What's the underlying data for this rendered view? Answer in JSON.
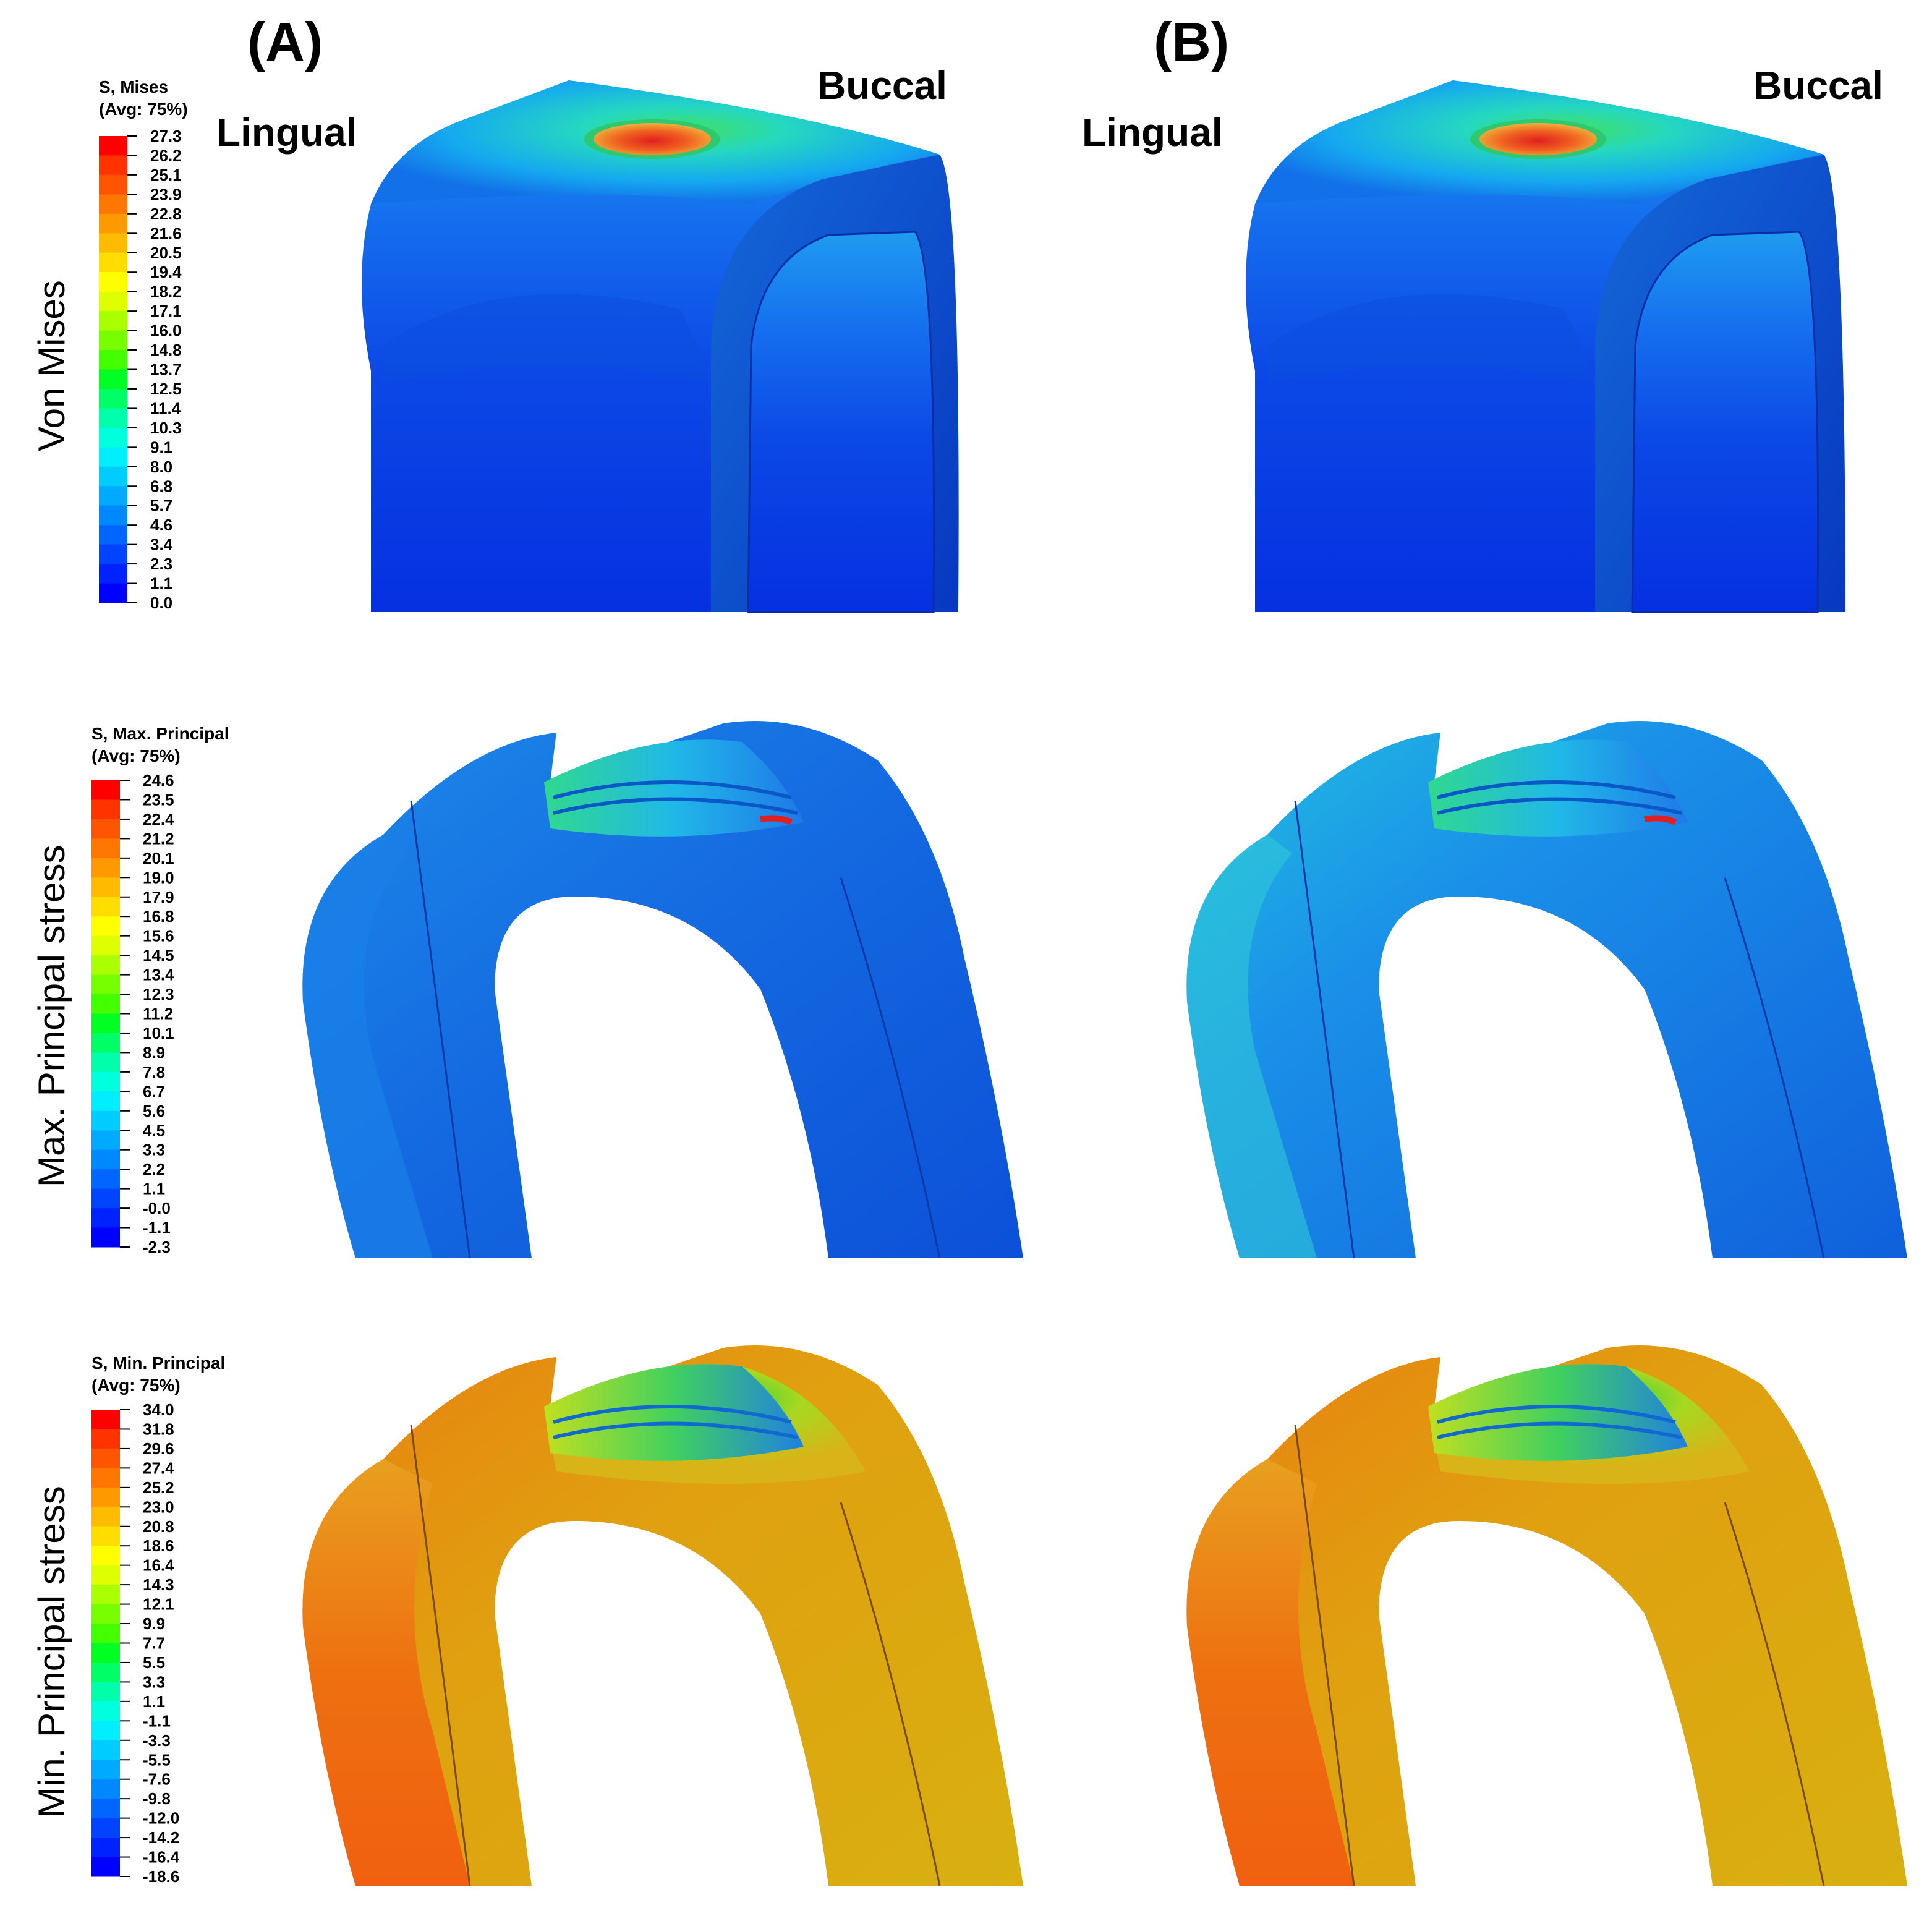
{
  "headers": {
    "panel_a": "(A)",
    "panel_b": "(B)",
    "lingual": "Lingual",
    "buccal": "Buccal"
  },
  "rows": [
    {
      "row_label": "Von Mises",
      "legend_title": "S, Mises",
      "legend_subtitle": "(Avg: 75%)",
      "ticks": [
        "27.3",
        "26.2",
        "25.1",
        "23.9",
        "22.8",
        "21.6",
        "20.5",
        "19.4",
        "18.2",
        "17.1",
        "16.0",
        "14.8",
        "13.7",
        "12.5",
        "11.4",
        "10.3",
        "9.1",
        "8.0",
        "6.8",
        "5.7",
        "4.6",
        "3.4",
        "2.3",
        "1.1",
        "0.0"
      ]
    },
    {
      "row_label": "Max.  Principal stress",
      "legend_title": "S, Max. Principal",
      "legend_subtitle": "(Avg: 75%)",
      "ticks": [
        "24.6",
        "23.5",
        "22.4",
        "21.2",
        "20.1",
        "19.0",
        "17.9",
        "16.8",
        "15.6",
        "14.5",
        "13.4",
        "12.3",
        "11.2",
        "10.1",
        "8.9",
        "7.8",
        "6.7",
        "5.6",
        "4.5",
        "3.3",
        "2.2",
        "1.1",
        "-0.0",
        "-1.1",
        "-2.3"
      ]
    },
    {
      "row_label": "Min.  Principal stress",
      "legend_title": "S, Min. Principal",
      "legend_subtitle": "(Avg: 75%)",
      "ticks": [
        "34.0",
        "31.8",
        "29.6",
        "27.4",
        "25.2",
        "23.0",
        "20.8",
        "18.6",
        "16.4",
        "14.3",
        "12.1",
        "9.9",
        "7.7",
        "5.5",
        "3.3",
        "1.1",
        "-1.1",
        "-3.3",
        "-5.5",
        "-7.6",
        "-9.8",
        "-12.0",
        "-14.2",
        "-16.4",
        "-18.6"
      ]
    }
  ],
  "colormap": [
    "#ff0000",
    "#ff3300",
    "#ff5500",
    "#ff7700",
    "#ff9900",
    "#ffbb00",
    "#ffdd00",
    "#ffff00",
    "#ddff00",
    "#aaff00",
    "#77ff00",
    "#44ff00",
    "#00ff22",
    "#00ff66",
    "#00ffaa",
    "#00ffdd",
    "#00eeff",
    "#00ccff",
    "#00aaff",
    "#0088ff",
    "#0066ff",
    "#0044ff",
    "#0022ff",
    "#0000ff"
  ]
}
